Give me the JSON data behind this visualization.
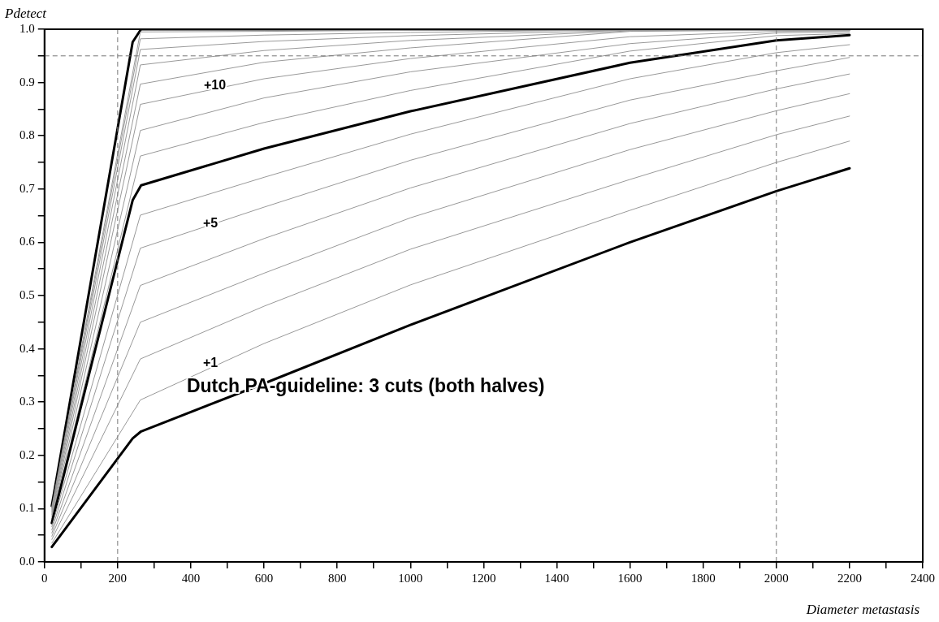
{
  "chart_data": {
    "type": "line",
    "xlabel": "Diameter metastasis",
    "ylabel": "Pdetect",
    "xlim": [
      0,
      2400
    ],
    "ylim": [
      0,
      1
    ],
    "xticks": [
      0,
      {
        "value": 100,
        "label": null
      },
      200,
      {
        "value": 300,
        "label": null
      },
      400,
      {
        "value": 500,
        "label": null
      },
      600,
      {
        "value": 700,
        "label": null
      },
      800,
      {
        "value": 900,
        "label": null
      },
      1000,
      {
        "value": 1100,
        "label": null
      },
      1200,
      {
        "value": 1300,
        "label": null
      },
      1400,
      {
        "value": 1500,
        "label": null
      },
      1600,
      {
        "value": 1700,
        "label": null
      },
      1800,
      {
        "value": 1900,
        "label": null
      },
      2000,
      {
        "value": 2100,
        "label": null
      },
      2200,
      {
        "value": 2300,
        "label": null
      },
      2400
    ],
    "yticks": [
      {
        "value": 0,
        "label": "0.0"
      },
      {
        "value": 0.05,
        "label": null
      },
      0.1,
      {
        "value": 0.15,
        "label": null
      },
      0.2,
      {
        "value": 0.25,
        "label": null
      },
      0.3,
      {
        "value": 0.35,
        "label": null
      },
      0.4,
      {
        "value": 0.45,
        "label": null
      },
      0.5,
      {
        "value": 0.55,
        "label": null
      },
      0.6,
      {
        "value": 0.65,
        "label": null
      },
      0.7,
      {
        "value": 0.75,
        "label": null
      },
      0.8,
      {
        "value": 0.85,
        "label": null
      },
      0.9,
      {
        "value": 0.95,
        "label": null
      },
      {
        "value": 1,
        "label": "1.0"
      }
    ],
    "grid": false,
    "legend": false,
    "marker": "none",
    "line_style": "solid",
    "series": [
      {
        "color": "#000000",
        "x": [
          20,
          241,
          264,
          600,
          1000,
          1600,
          2000,
          2200
        ],
        "values": [
          0.028,
          0.232,
          0.245,
          0.335,
          0.445,
          0.6,
          0.696,
          0.739
        ]
      },
      {
        "color": "#999999",
        "x": [
          20,
          262,
          600,
          1000,
          1600,
          2000,
          2200
        ],
        "values": [
          0.035,
          0.304,
          0.41,
          0.52,
          0.66,
          0.75,
          0.79
        ]
      },
      {
        "color": "#999999",
        "x": [
          20,
          262,
          600,
          1000,
          1600,
          2000,
          2200
        ],
        "values": [
          0.042,
          0.381,
          0.48,
          0.587,
          0.718,
          0.802,
          0.837
        ]
      },
      {
        "color": "#999999",
        "x": [
          20,
          262,
          600,
          1000,
          1600,
          2000,
          2200
        ],
        "values": [
          0.048,
          0.45,
          0.542,
          0.646,
          0.774,
          0.847,
          0.879
        ]
      },
      {
        "color": "#999999",
        "x": [
          20,
          262,
          600,
          1000,
          1600,
          2000,
          2200
        ],
        "values": [
          0.054,
          0.519,
          0.607,
          0.702,
          0.823,
          0.888,
          0.916
        ]
      },
      {
        "color": "#999999",
        "x": [
          20,
          262,
          600,
          1000,
          1600,
          2000,
          2200
        ],
        "values": [
          0.06,
          0.589,
          0.666,
          0.754,
          0.867,
          0.922,
          0.947
        ]
      },
      {
        "color": "#999999",
        "x": [
          20,
          262,
          600,
          1000,
          1600,
          2000,
          2200
        ],
        "values": [
          0.066,
          0.651,
          0.722,
          0.803,
          0.907,
          0.956,
          0.971
        ]
      },
      {
        "color": "#000000",
        "x": [
          20,
          241,
          264,
          600,
          1000,
          1600,
          2000,
          2200
        ],
        "values": [
          0.073,
          0.679,
          0.707,
          0.776,
          0.846,
          0.937,
          0.979,
          0.989
        ]
      },
      {
        "color": "#999999",
        "x": [
          20,
          262,
          600,
          1000,
          1600,
          2000,
          2200
        ],
        "values": [
          0.077,
          0.762,
          0.825,
          0.885,
          0.959,
          0.988,
          0.992
        ]
      },
      {
        "color": "#999999",
        "x": [
          20,
          262,
          600,
          1000,
          1600,
          2000,
          2200
        ],
        "values": [
          0.081,
          0.81,
          0.871,
          0.92,
          0.973,
          0.993,
          0.995
        ]
      },
      {
        "color": "#999999",
        "x": [
          20,
          262,
          600,
          1000,
          1600,
          2000,
          2200
        ],
        "values": [
          0.085,
          0.859,
          0.907,
          0.945,
          0.986,
          0.996,
          0.997
        ]
      },
      {
        "color": "#999999",
        "x": [
          20,
          262,
          600,
          1000,
          1600,
          2000,
          2200
        ],
        "values": [
          0.089,
          0.897,
          0.938,
          0.965,
          0.996,
          0.998,
          0.998
        ]
      },
      {
        "color": "#999999",
        "x": [
          20,
          262,
          600,
          1000,
          1600,
          2000,
          2200
        ],
        "values": [
          0.093,
          0.933,
          0.96,
          0.979,
          0.997,
          0.999,
          0.999
        ]
      },
      {
        "color": "#999999",
        "x": [
          20,
          262,
          600,
          1000,
          1600,
          2000,
          2200
        ],
        "values": [
          0.097,
          0.962,
          0.977,
          0.988,
          0.998,
          0.999,
          1
        ]
      },
      {
        "color": "#999999",
        "x": [
          20,
          262,
          600,
          1000,
          1600,
          2000,
          2200
        ],
        "values": [
          0.1,
          0.982,
          0.989,
          0.994,
          0.999,
          1,
          1
        ]
      },
      {
        "color": "#999999",
        "x": [
          20,
          262,
          600,
          1000,
          1600,
          2000,
          2200
        ],
        "values": [
          0.103,
          0.995,
          0.996,
          0.998,
          1,
          1,
          1
        ]
      },
      {
        "color": "#000000",
        "x": [
          20,
          241,
          264,
          2200
        ],
        "values": [
          0.105,
          0.976,
          1,
          1
        ]
      }
    ],
    "ref_lines": [
      {
        "axis": "x",
        "value": 200,
        "color": "#777777",
        "line_style": "dashed"
      },
      {
        "axis": "x",
        "value": 2000,
        "color": "#777777",
        "line_style": "dashed"
      },
      {
        "axis": "y",
        "value": 0.95,
        "color": "#777777",
        "line_style": "dashed"
      }
    ],
    "annotations": [
      "+10",
      "+5",
      "+1",
      "Dutch PA-guideline: 3 cuts (both halves)"
    ]
  }
}
